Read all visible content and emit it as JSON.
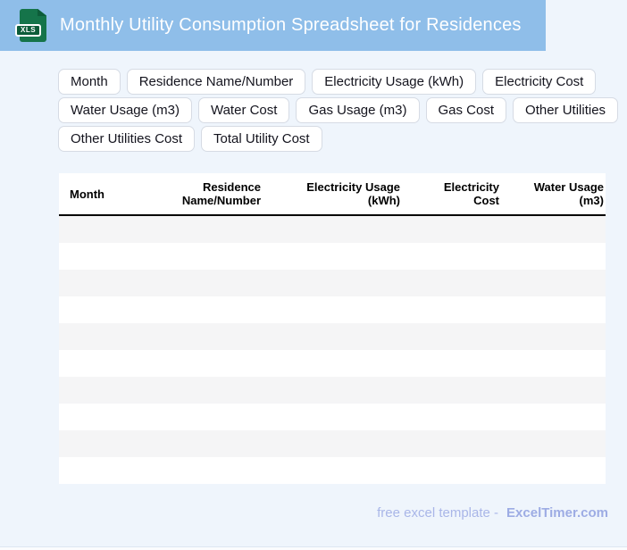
{
  "header": {
    "title": "Monthly Utility Consumption Spreadsheet for Residences",
    "file_badge": "XLS"
  },
  "chips": [
    "Month",
    "Residence Name/Number",
    "Electricity Usage (kWh)",
    "Electricity Cost",
    "Water Usage (m3)",
    "Water Cost",
    "Gas Usage (m3)",
    "Gas Cost",
    "Other Utilities",
    "Other Utilities Cost",
    "Total Utility Cost"
  ],
  "table": {
    "columns": [
      "Month",
      "Residence Name/Number",
      "Electricity Usage (kWh)",
      "Electricity Cost",
      "Water Usage (m3)"
    ],
    "empty_row_count": 10
  },
  "footer": {
    "label": "free excel template -",
    "brand": "ExcelTimer.com"
  },
  "colors": {
    "header_bg": "#8fbee9",
    "page_bg": "#eff5fc",
    "icon_green": "#15744a",
    "icon_green_dark": "#0d5c39",
    "stripe": "#f5f5f6",
    "footer_text": "#a9b6e8",
    "footer_brand": "#9dace4"
  }
}
